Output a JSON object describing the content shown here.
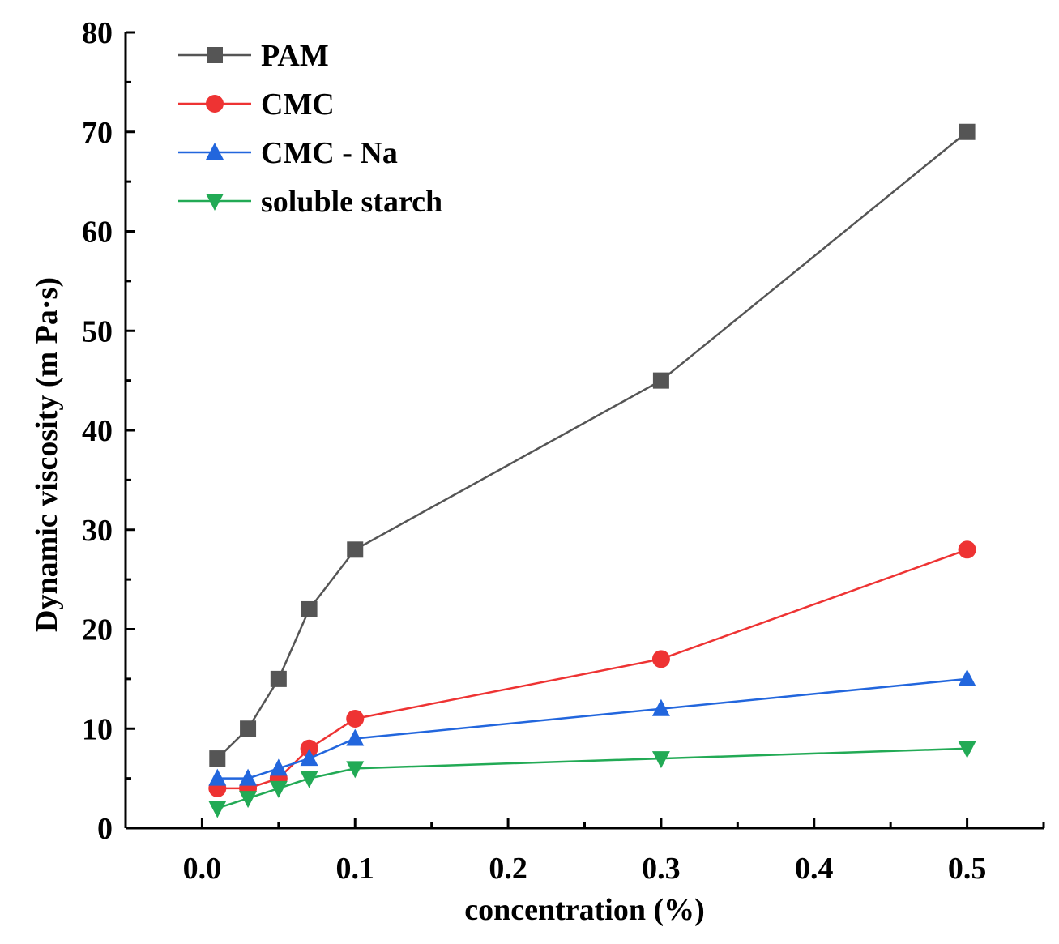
{
  "chart_data": {
    "type": "line",
    "xlabel": "concentration (%)",
    "ylabel": "Dynamic viscosity (m Pa·s)",
    "xlim": [
      -0.05,
      0.55
    ],
    "ylim": [
      0,
      80
    ],
    "xticks": [
      0.0,
      0.1,
      0.2,
      0.3,
      0.4,
      0.5
    ],
    "xtick_labels": [
      "0.0",
      "0.1",
      "0.2",
      "0.3",
      "0.4",
      "0.5"
    ],
    "yticks": [
      0,
      10,
      20,
      30,
      40,
      50,
      60,
      70,
      80
    ],
    "ytick_labels": [
      "0",
      "10",
      "20",
      "30",
      "40",
      "50",
      "60",
      "70",
      "80"
    ],
    "legend_position": "top-left",
    "grid": false,
    "x": [
      0.01,
      0.03,
      0.05,
      0.07,
      0.1,
      0.3,
      0.5
    ],
    "series": [
      {
        "name": "PAM",
        "marker": "square",
        "color": "#555555",
        "values": [
          7,
          10,
          15,
          22,
          28,
          45,
          70
        ]
      },
      {
        "name": "CMC",
        "marker": "circle",
        "color": "#ee3333",
        "values": [
          4,
          4,
          5,
          8,
          11,
          17,
          28
        ]
      },
      {
        "name": "CMC - Na",
        "marker": "triangle-up",
        "color": "#2266dd",
        "values": [
          5,
          5,
          6,
          7,
          9,
          12,
          15
        ]
      },
      {
        "name": "soluble starch",
        "marker": "triangle-down",
        "color": "#22aa55",
        "values": [
          2,
          3,
          4,
          5,
          6,
          7,
          8
        ]
      }
    ]
  }
}
